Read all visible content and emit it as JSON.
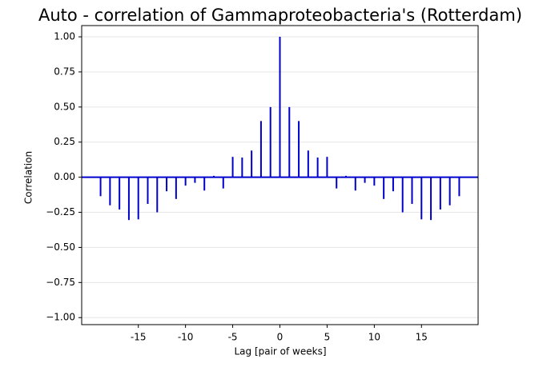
{
  "chart_data": {
    "type": "stem",
    "title": "Auto - correlation of Gammaproteobacteria's (Rotterdam)",
    "x_label": "Lag [pair of weeks]",
    "y_label": "Correlation",
    "x": [
      -19,
      -18,
      -17,
      -16,
      -15,
      -14,
      -13,
      -12,
      -11,
      -10,
      -9,
      -8,
      -7,
      -6,
      -5,
      -4,
      -3,
      -2,
      -1,
      0,
      1,
      2,
      3,
      4,
      5,
      6,
      7,
      8,
      9,
      10,
      11,
      12,
      13,
      14,
      15,
      16,
      17,
      18,
      19
    ],
    "values": [
      -0.135,
      -0.2,
      -0.23,
      -0.305,
      -0.3,
      -0.19,
      -0.25,
      -0.1,
      -0.155,
      -0.06,
      -0.04,
      -0.095,
      0.01,
      -0.08,
      0.145,
      0.14,
      0.19,
      0.4,
      0.5,
      1.0,
      0.5,
      0.4,
      0.19,
      0.14,
      0.145,
      -0.08,
      0.01,
      -0.095,
      -0.04,
      -0.06,
      -0.155,
      -0.1,
      -0.25,
      -0.19,
      -0.3,
      -0.305,
      -0.23,
      -0.2,
      -0.135
    ],
    "color": "#0000cc",
    "xlim": [
      -21,
      21
    ],
    "xticks": [
      -15,
      -10,
      -5,
      0,
      5,
      10,
      15
    ],
    "ylim": [
      -1.05,
      1.08
    ],
    "yticks": [
      {
        "value": -1,
        "label": "−1.00"
      },
      {
        "value": -0.75,
        "label": "−0.75"
      },
      {
        "value": -0.5,
        "label": "−0.50"
      },
      {
        "value": -0.25,
        "label": "−0.25"
      },
      {
        "value": 0,
        "label": "0.00"
      },
      {
        "value": 0.25,
        "label": "0.25"
      },
      {
        "value": 0.5,
        "label": "0.50"
      },
      {
        "value": 0.75,
        "label": "0.75"
      },
      {
        "value": 1,
        "label": "1.00"
      }
    ],
    "grid": true
  }
}
